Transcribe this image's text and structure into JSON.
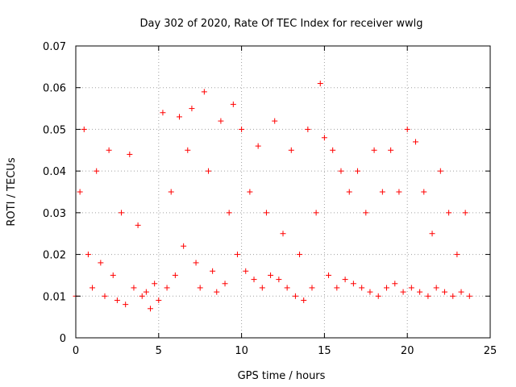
{
  "chart_data": {
    "type": "scatter",
    "title": "Day 302 of 2020, Rate Of TEC Index for receiver wwlg",
    "xlabel": "GPS time / hours",
    "ylabel": "ROTI / TECUs",
    "xlim": [
      0,
      25
    ],
    "ylim": [
      0,
      0.07
    ],
    "xticks": [
      "0",
      "5",
      "10",
      "15",
      "20",
      "25"
    ],
    "yticks": [
      "0",
      "0.01",
      "0.02",
      "0.03",
      "0.04",
      "0.05",
      "0.06",
      "0.07"
    ],
    "grid": true,
    "marker": "+",
    "color": "#ff0000",
    "series": [
      {
        "x": [
          0.0,
          0.25,
          0.5,
          0.75,
          1.0,
          1.25,
          1.5,
          1.75,
          2.0,
          2.25,
          2.5,
          2.75,
          3.0,
          3.25,
          3.5,
          3.75,
          4.0,
          4.25,
          4.5,
          4.75,
          5.0,
          5.25,
          5.5,
          5.75,
          6.0,
          6.25,
          6.5,
          6.75,
          7.0,
          7.25,
          7.5,
          7.75,
          8.0,
          8.25,
          8.5,
          8.75,
          9.0,
          9.25,
          9.5,
          9.75,
          10.0,
          10.25,
          10.5,
          10.75,
          11.0,
          11.25,
          11.5,
          11.75,
          12.0,
          12.25,
          12.5,
          12.75,
          13.0,
          13.25,
          13.5,
          13.75,
          14.0,
          14.25,
          14.5,
          14.75,
          15.0,
          15.25,
          15.5,
          15.75,
          16.0,
          16.25,
          16.5,
          16.75,
          17.0,
          17.25,
          17.5,
          17.75,
          18.0,
          18.25,
          18.5,
          18.75,
          19.0,
          19.25,
          19.5,
          19.75,
          20.0,
          20.25,
          20.5,
          20.75,
          21.0,
          21.25,
          21.5,
          21.75,
          22.0,
          22.25,
          22.5,
          22.75,
          23.0,
          23.25,
          23.5,
          23.75
        ],
        "y": [
          0.01,
          0.035,
          0.05,
          0.02,
          0.012,
          0.04,
          0.018,
          0.01,
          0.045,
          0.015,
          0.009,
          0.03,
          0.008,
          0.044,
          0.012,
          0.027,
          0.01,
          0.011,
          0.007,
          0.013,
          0.009,
          0.054,
          0.012,
          0.035,
          0.015,
          0.053,
          0.022,
          0.045,
          0.055,
          0.018,
          0.012,
          0.059,
          0.04,
          0.016,
          0.011,
          0.052,
          0.013,
          0.03,
          0.056,
          0.02,
          0.05,
          0.016,
          0.035,
          0.014,
          0.046,
          0.012,
          0.03,
          0.015,
          0.052,
          0.014,
          0.025,
          0.012,
          0.045,
          0.01,
          0.02,
          0.009,
          0.05,
          0.012,
          0.03,
          0.061,
          0.048,
          0.015,
          0.045,
          0.012,
          0.04,
          0.014,
          0.035,
          0.013,
          0.04,
          0.012,
          0.03,
          0.011,
          0.045,
          0.01,
          0.035,
          0.012,
          0.045,
          0.013,
          0.035,
          0.011,
          0.05,
          0.012,
          0.047,
          0.011,
          0.035,
          0.01,
          0.025,
          0.012,
          0.04,
          0.011,
          0.03,
          0.01,
          0.02,
          0.011,
          0.03,
          0.01
        ]
      }
    ]
  }
}
